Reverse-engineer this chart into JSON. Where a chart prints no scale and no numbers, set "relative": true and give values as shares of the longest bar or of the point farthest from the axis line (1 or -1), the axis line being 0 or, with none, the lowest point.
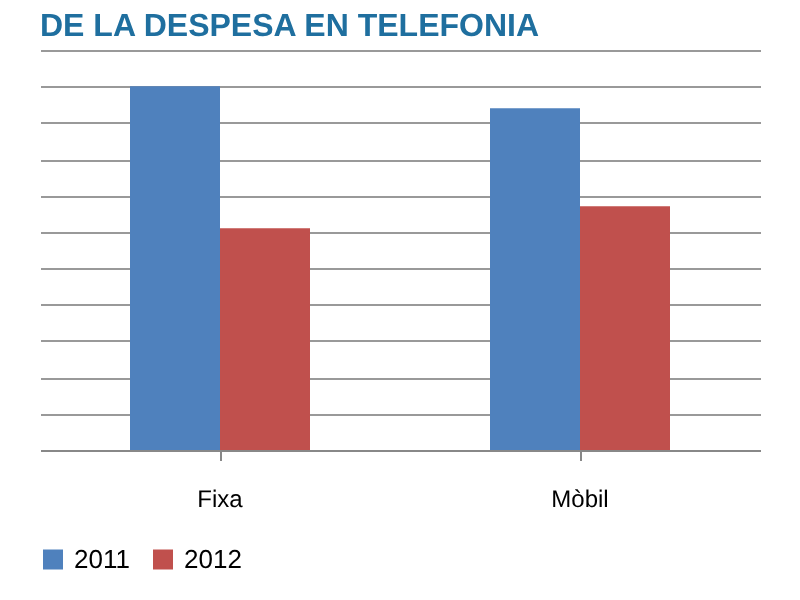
{
  "chart_data": {
    "type": "bar",
    "title": "DE LA DESPESA EN TELEFONIA",
    "categories": [
      "Fixa",
      "Mòbil"
    ],
    "relative": true,
    "grid": true,
    "legend": "bottom",
    "series": [
      {
        "name": "2011",
        "color": "#4f81bd",
        "values": [
          1,
          0.94
        ]
      },
      {
        "name": "2012",
        "color": "#c0504d",
        "values": [
          0.61,
          0.67
        ]
      }
    ]
  }
}
